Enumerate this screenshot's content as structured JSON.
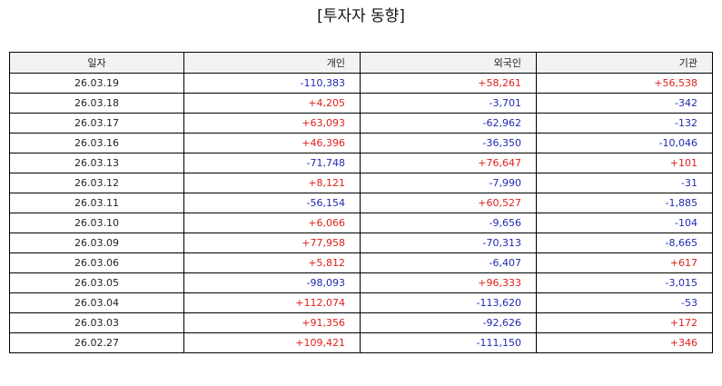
{
  "title": "[투자자 동향]",
  "columns": [
    "일자",
    "개인",
    "외국인",
    "기관"
  ],
  "rows": [
    {
      "date": "26.03.19",
      "individual": "-110,383",
      "foreign": "+58,261",
      "institution": "+56,538"
    },
    {
      "date": "26.03.18",
      "individual": "+4,205",
      "foreign": "-3,701",
      "institution": "-342"
    },
    {
      "date": "26.03.17",
      "individual": "+63,093",
      "foreign": "-62,962",
      "institution": "-132"
    },
    {
      "date": "26.03.16",
      "individual": "+46,396",
      "foreign": "-36,350",
      "institution": "-10,046"
    },
    {
      "date": "26.03.13",
      "individual": "-71,748",
      "foreign": "+76,647",
      "institution": "+101"
    },
    {
      "date": "26.03.12",
      "individual": "+8,121",
      "foreign": "-7,990",
      "institution": "-31"
    },
    {
      "date": "26.03.11",
      "individual": "-56,154",
      "foreign": "+60,527",
      "institution": "-1,885"
    },
    {
      "date": "26.03.10",
      "individual": "+6,066",
      "foreign": "-9,656",
      "institution": "-104"
    },
    {
      "date": "26.03.09",
      "individual": "+77,958",
      "foreign": "-70,313",
      "institution": "-8,665"
    },
    {
      "date": "26.03.06",
      "individual": "+5,812",
      "foreign": "-6,407",
      "institution": "+617"
    },
    {
      "date": "26.03.05",
      "individual": "-98,093",
      "foreign": "+96,333",
      "institution": "-3,015"
    },
    {
      "date": "26.03.04",
      "individual": "+112,074",
      "foreign": "-113,620",
      "institution": "-53"
    },
    {
      "date": "26.03.03",
      "individual": "+91,356",
      "foreign": "-92,626",
      "institution": "+172"
    },
    {
      "date": "26.02.27",
      "individual": "+109,421",
      "foreign": "-111,150",
      "institution": "+346"
    }
  ],
  "colors": {
    "positive": "#e0201b",
    "negative": "#1f2bb0",
    "header_background": "#f2f2f2",
    "border": "#000000"
  }
}
